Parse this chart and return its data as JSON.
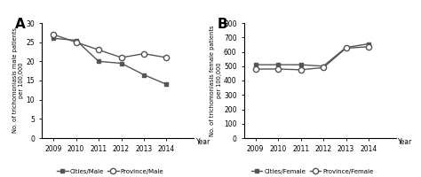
{
  "years": [
    2009,
    2010,
    2011,
    2012,
    2013,
    2014
  ],
  "cities_male": [
    26,
    25.5,
    20,
    19.5,
    16.5,
    14
  ],
  "province_male": [
    27,
    25,
    23,
    21,
    22,
    21
  ],
  "cities_female": [
    510,
    510,
    510,
    500,
    630,
    655
  ],
  "province_female": [
    480,
    480,
    475,
    490,
    625,
    635
  ],
  "panel_a_ylabel": "No. of trichomoniasis male patients\nper 100,000",
  "panel_b_ylabel": "No. of trichomoniasis female patients\nper 100,000",
  "year_label": "Year",
  "panel_a_ylim": [
    0,
    30
  ],
  "panel_a_yticks": [
    0,
    5,
    10,
    15,
    20,
    25,
    30
  ],
  "panel_b_ylim": [
    0,
    800
  ],
  "panel_b_yticks": [
    0,
    100,
    200,
    300,
    400,
    500,
    600,
    700,
    800
  ],
  "label_a": "A",
  "label_b": "B",
  "legend_cities_male": "Cities/Male",
  "legend_province_male": "Province/Male",
  "legend_cities_female": "Cities/Female",
  "legend_province_female": "Province/Female",
  "line_color": "#555555",
  "bg_color": "#ffffff",
  "figsize": [
    4.74,
    2.0
  ],
  "dpi": 100
}
